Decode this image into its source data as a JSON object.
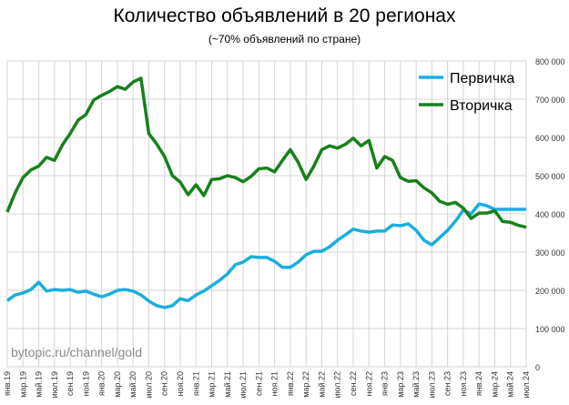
{
  "chart_data": {
    "type": "line",
    "title": "Количество объявлений  в 20 регионах",
    "subtitle": "(~70% объявлений по стране)",
    "watermark": "bytopic.ru/channel/gold",
    "xlabel": "",
    "ylabel": "",
    "ylim": [
      0,
      800000
    ],
    "yticks": [
      "0",
      "100 000",
      "200 000",
      "300 000",
      "400 000",
      "500 000",
      "600 000",
      "700 000",
      "800 000"
    ],
    "y_axis_side": "right",
    "grid": true,
    "legend": "top-right",
    "x_start": "2019-01",
    "xtick_labels": [
      "янв.19",
      "мар.19",
      "май.19",
      "июл.19",
      "сен.19",
      "ноя.19",
      "янв.20",
      "мар.20",
      "май.20",
      "июл.20",
      "сен.20",
      "ноя.20",
      "янв.21",
      "мар.21",
      "май.21",
      "июл.21",
      "сен.21",
      "ноя.21",
      "янв.22",
      "мар.22",
      "май.22",
      "июл.22",
      "сен.22",
      "ноя.22",
      "янв.23",
      "мар.23",
      "май.23",
      "июл.23",
      "сен.23",
      "ноя.23",
      "янв.24",
      "мар.24",
      "май.24",
      "июл.24"
    ],
    "series": [
      {
        "name": "Первичка",
        "color": "#1aaee0",
        "values": [
          173000,
          188000,
          193000,
          202000,
          221000,
          198000,
          202000,
          200000,
          202000,
          195000,
          198000,
          190000,
          183000,
          190000,
          200000,
          202000,
          198000,
          188000,
          172000,
          160000,
          155000,
          160000,
          178000,
          173000,
          188000,
          198000,
          212000,
          226000,
          243000,
          267000,
          274000,
          288000,
          286000,
          286000,
          276000,
          260000,
          260000,
          274000,
          293000,
          302000,
          302000,
          314000,
          331000,
          345000,
          360000,
          355000,
          352000,
          355000,
          355000,
          371000,
          369000,
          374000,
          357000,
          331000,
          319000,
          338000,
          357000,
          381000,
          410000,
          400000,
          426000,
          421000,
          412000,
          412000,
          412000,
          412000,
          412000
        ]
      },
      {
        "name": "Вторичка",
        "color": "#17801c",
        "values": [
          405000,
          455000,
          495000,
          515000,
          525000,
          548000,
          540000,
          580000,
          610000,
          645000,
          660000,
          698000,
          710000,
          720000,
          733000,
          726000,
          745000,
          755000,
          610000,
          583000,
          550000,
          500000,
          483000,
          450000,
          476000,
          448000,
          490000,
          492000,
          500000,
          495000,
          484000,
          498000,
          518000,
          520000,
          510000,
          540000,
          568000,
          535000,
          490000,
          525000,
          568000,
          578000,
          572000,
          582000,
          598000,
          578000,
          592000,
          520000,
          550000,
          540000,
          495000,
          485000,
          487000,
          468000,
          455000,
          433000,
          425000,
          430000,
          415000,
          388000,
          402000,
          402000,
          408000,
          380000,
          378000,
          370000,
          365000
        ]
      }
    ]
  }
}
